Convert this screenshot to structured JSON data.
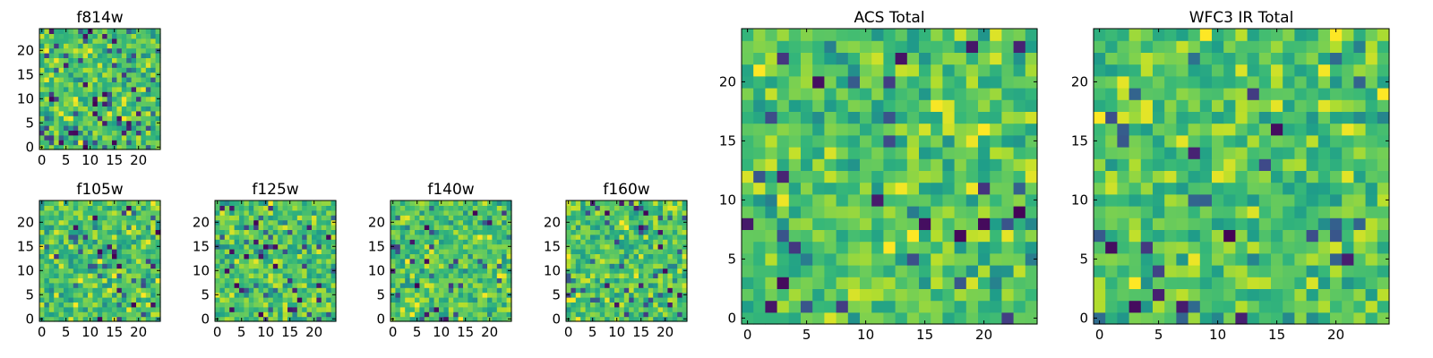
{
  "chart_data": [
    {
      "type": "heatmap",
      "title": "f814w",
      "grid_size": 25,
      "xlim": [
        -0.5,
        24.5
      ],
      "ylim": [
        -0.5,
        24.5
      ],
      "xticks": [
        0,
        5,
        10,
        15,
        20
      ],
      "yticks": [
        0,
        5,
        10,
        15,
        20
      ],
      "xlabel": "",
      "ylabel": "",
      "colormap": "viridis",
      "seed": 11,
      "dark_fraction": 0.035
    },
    {
      "type": "heatmap",
      "title": "f105w",
      "grid_size": 25,
      "xlim": [
        -0.5,
        24.5
      ],
      "ylim": [
        -0.5,
        24.5
      ],
      "xticks": [
        0,
        5,
        10,
        15,
        20
      ],
      "yticks": [
        0,
        5,
        10,
        15,
        20
      ],
      "xlabel": "",
      "ylabel": "",
      "colormap": "viridis",
      "seed": 23,
      "dark_fraction": 0.02
    },
    {
      "type": "heatmap",
      "title": "f125w",
      "grid_size": 25,
      "xlim": [
        -0.5,
        24.5
      ],
      "ylim": [
        -0.5,
        24.5
      ],
      "xticks": [
        0,
        5,
        10,
        15,
        20
      ],
      "yticks": [
        0,
        5,
        10,
        15,
        20
      ],
      "xlabel": "",
      "ylabel": "",
      "colormap": "viridis",
      "seed": 37,
      "dark_fraction": 0.03
    },
    {
      "type": "heatmap",
      "title": "f140w",
      "grid_size": 25,
      "xlim": [
        -0.5,
        24.5
      ],
      "ylim": [
        -0.5,
        24.5
      ],
      "xticks": [
        0,
        5,
        10,
        15,
        20
      ],
      "yticks": [
        0,
        5,
        10,
        15,
        20
      ],
      "xlabel": "",
      "ylabel": "",
      "colormap": "viridis",
      "seed": 41,
      "dark_fraction": 0.015
    },
    {
      "type": "heatmap",
      "title": "f160w",
      "grid_size": 25,
      "xlim": [
        -0.5,
        24.5
      ],
      "ylim": [
        -0.5,
        24.5
      ],
      "xticks": [
        0,
        5,
        10,
        15,
        20
      ],
      "yticks": [
        0,
        5,
        10,
        15,
        20
      ],
      "xlabel": "",
      "ylabel": "",
      "colormap": "viridis",
      "seed": 53,
      "dark_fraction": 0.02
    },
    {
      "type": "heatmap",
      "title": "ACS Total",
      "grid_size": 25,
      "xlim": [
        -0.5,
        24.5
      ],
      "ylim": [
        -0.5,
        24.5
      ],
      "xticks": [
        0,
        5,
        10,
        15,
        20
      ],
      "yticks": [
        0,
        5,
        10,
        15,
        20
      ],
      "xlabel": "",
      "ylabel": "",
      "colormap": "viridis",
      "seed": 67,
      "dark_fraction": 0.02
    },
    {
      "type": "heatmap",
      "title": "WFC3 IR Total",
      "grid_size": 25,
      "xlim": [
        -0.5,
        24.5
      ],
      "ylim": [
        -0.5,
        24.5
      ],
      "xticks": [
        0,
        5,
        10,
        15,
        20
      ],
      "yticks": [
        0,
        5,
        10,
        15,
        20
      ],
      "xlabel": "",
      "ylabel": "",
      "colormap": "viridis",
      "seed": 79,
      "dark_fraction": 0.02
    }
  ]
}
